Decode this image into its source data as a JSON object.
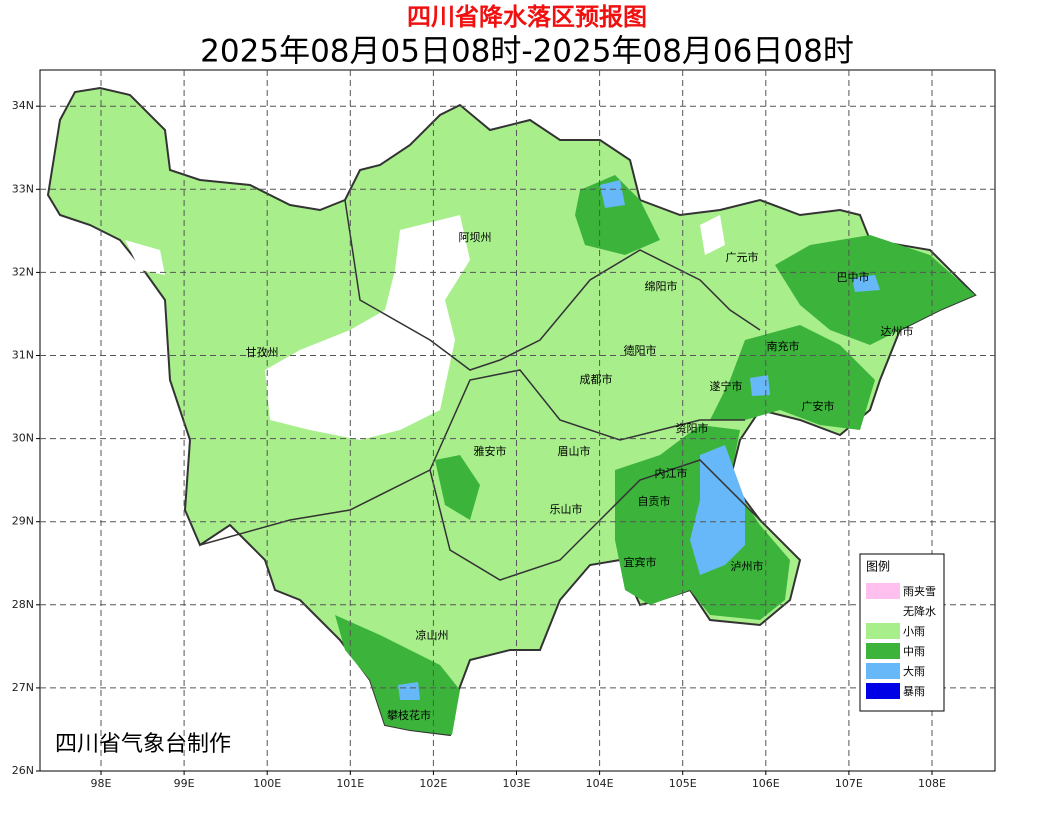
{
  "header": {
    "title": "四川省降水落区预报图",
    "subtitle": "2025年08月05日08时-2025年08月06日08时"
  },
  "lat_ticks": [
    {
      "value": 34,
      "label": "34N"
    },
    {
      "value": 33,
      "label": "33N"
    },
    {
      "value": 32,
      "label": "32N"
    },
    {
      "value": 31,
      "label": "31N"
    },
    {
      "value": 30,
      "label": "30N"
    },
    {
      "value": 29,
      "label": "29N"
    },
    {
      "value": 28,
      "label": "28N"
    },
    {
      "value": 27,
      "label": "27N"
    },
    {
      "value": 26,
      "label": "26N"
    }
  ],
  "lon_ticks": [
    {
      "value": 98,
      "label": "98E"
    },
    {
      "value": 99,
      "label": "99E"
    },
    {
      "value": 100,
      "label": "100E"
    },
    {
      "value": 101,
      "label": "101E"
    },
    {
      "value": 102,
      "label": "102E"
    },
    {
      "value": 103,
      "label": "103E"
    },
    {
      "value": 104,
      "label": "104E"
    },
    {
      "value": 105,
      "label": "105E"
    },
    {
      "value": 106,
      "label": "106E"
    },
    {
      "value": 107,
      "label": "107E"
    },
    {
      "value": 108,
      "label": "108E"
    }
  ],
  "cities": [
    "阿坝州",
    "广元市",
    "巴中市",
    "绵阳市",
    "达州市",
    "甘孜州",
    "德阳市",
    "南充市",
    "成都市",
    "遂宁市",
    "广安市",
    "资阳市",
    "雅安市",
    "眉山市",
    "内江市",
    "自贡市",
    "乐山市",
    "宜宾市",
    "泸州市",
    "凉山州",
    "攀枝花市"
  ],
  "legend": {
    "title": "图例",
    "items": [
      {
        "label": "雨夹雪",
        "color": "#ffc0f0"
      },
      {
        "label": "无降水",
        "color": "#ffffff"
      },
      {
        "label": "小雨",
        "color": "#a8ef8c"
      },
      {
        "label": "中雨",
        "color": "#3cb43c"
      },
      {
        "label": "大雨",
        "color": "#66b8f8"
      },
      {
        "label": "暴雨",
        "color": "#0000e6"
      }
    ]
  },
  "credit": "四川省气象台制作"
}
